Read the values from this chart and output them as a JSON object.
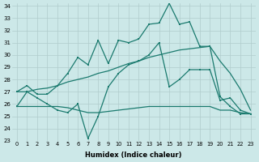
{
  "xlabel": "Humidex (Indice chaleur)",
  "x": [
    0,
    1,
    2,
    3,
    4,
    5,
    6,
    7,
    8,
    9,
    10,
    11,
    12,
    13,
    14,
    15,
    16,
    17,
    18,
    19,
    20,
    21,
    22,
    23
  ],
  "line_top": [
    27.0,
    27.5,
    26.8,
    26.8,
    27.5,
    28.5,
    29.8,
    29.2,
    31.2,
    29.3,
    31.2,
    31.0,
    31.3,
    32.5,
    32.6,
    34.2,
    32.5,
    32.7,
    30.7,
    30.7,
    26.6,
    25.8,
    25.2,
    25.2
  ],
  "line_bot": [
    25.8,
    27.0,
    26.5,
    26.0,
    25.5,
    25.3,
    26.0,
    23.2,
    25.0,
    27.4,
    28.5,
    29.2,
    29.5,
    30.0,
    31.0,
    27.4,
    28.0,
    28.8,
    28.8,
    28.8,
    26.3,
    26.5,
    25.5,
    25.2
  ],
  "line_upper": [
    27.0,
    27.0,
    27.2,
    27.3,
    27.5,
    27.8,
    28.0,
    28.2,
    28.5,
    28.7,
    29.0,
    29.3,
    29.5,
    29.8,
    30.0,
    30.2,
    30.4,
    30.5,
    30.6,
    30.7,
    29.5,
    28.5,
    27.2,
    25.5
  ],
  "line_lower": [
    25.8,
    25.8,
    25.8,
    25.8,
    25.8,
    25.7,
    25.5,
    25.3,
    25.3,
    25.4,
    25.5,
    25.6,
    25.7,
    25.8,
    25.8,
    25.8,
    25.8,
    25.8,
    25.8,
    25.8,
    25.5,
    25.5,
    25.3,
    25.2
  ],
  "ylim": [
    23,
    34
  ],
  "xlim": [
    -0.5,
    23.5
  ],
  "yticks": [
    23,
    24,
    25,
    26,
    27,
    28,
    29,
    30,
    31,
    32,
    33,
    34
  ],
  "xticks": [
    0,
    1,
    2,
    3,
    4,
    5,
    6,
    7,
    8,
    9,
    10,
    11,
    12,
    13,
    14,
    15,
    16,
    17,
    18,
    19,
    20,
    21,
    22,
    23
  ],
  "line_color": "#1a7a6e",
  "bg_color": "#cce8e8",
  "grid_color": "#b0cccc"
}
